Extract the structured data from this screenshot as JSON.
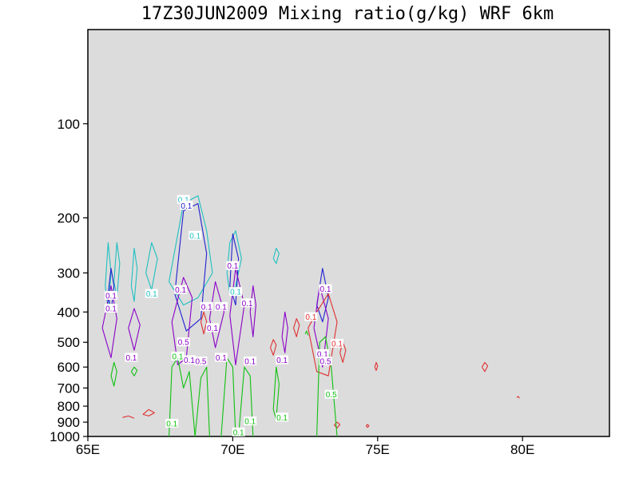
{
  "chart_data": {
    "type": "contour",
    "title": "17Z30JUN2009 Mixing ratio(g/kg)  WRF 6km",
    "xlabel": "",
    "ylabel": "",
    "x_axis": {
      "min": 65,
      "max": 83,
      "ticks": [
        {
          "value": 65,
          "label": "65E"
        },
        {
          "value": 70,
          "label": "70E"
        },
        {
          "value": 75,
          "label": "75E"
        },
        {
          "value": 80,
          "label": "80E"
        }
      ]
    },
    "y_axis": {
      "scale": "log-pressure",
      "min": 1000,
      "max": 50,
      "ticks": [
        {
          "value": 100,
          "label": "100"
        },
        {
          "value": 200,
          "label": "200"
        },
        {
          "value": 300,
          "label": "300"
        },
        {
          "value": 400,
          "label": "400"
        },
        {
          "value": 500,
          "label": "500"
        },
        {
          "value": 600,
          "label": "600"
        },
        {
          "value": 700,
          "label": "700"
        },
        {
          "value": 800,
          "label": "800"
        },
        {
          "value": 900,
          "label": "900"
        },
        {
          "value": 1000,
          "label": "1000"
        }
      ]
    },
    "background_color": "#dcdcdc",
    "series": [
      {
        "color": "#20c0c0",
        "contours": [
          {
            "x": [
              65.6,
              65.7,
              65.8,
              65.7,
              65.6
            ],
            "p": [
              330,
              240,
              300,
              390,
              330
            ]
          },
          {
            "x": [
              65.9,
              66.0,
              66.1,
              66.0,
              65.9
            ],
            "p": [
              320,
              240,
              280,
              360,
              320
            ]
          },
          {
            "x": [
              66.5,
              66.6,
              66.7,
              66.6,
              66.5
            ],
            "p": [
              330,
              250,
              290,
              370,
              330
            ]
          },
          {
            "x": [
              67.0,
              67.2,
              67.4,
              67.2,
              67.0
            ],
            "p": [
              300,
              240,
              270,
              340,
              300
            ]
          },
          {
            "x": [
              67.8,
              68.3,
              68.8,
              69.1,
              69.3,
              68.8,
              68.3,
              67.8
            ],
            "p": [
              320,
              180,
              170,
              220,
              300,
              360,
              380,
              320
            ]
          },
          {
            "x": [
              69.8,
              69.9,
              70.1,
              70.3,
              70.1,
              69.9,
              69.8
            ],
            "p": [
              300,
              240,
              220,
              270,
              330,
              350,
              300
            ]
          },
          {
            "x": [
              71.4,
              71.5,
              71.6,
              71.5,
              71.4
            ],
            "p": [
              270,
              250,
              260,
              280,
              270
            ]
          }
        ]
      },
      {
        "color": "#2020d0",
        "contours": [
          {
            "x": [
              65.7,
              65.8,
              65.9,
              65.8,
              65.7
            ],
            "p": [
              350,
              290,
              330,
              400,
              350
            ]
          },
          {
            "x": [
              68.0,
              68.3,
              68.8,
              69.1,
              68.9,
              68.4,
              68.0
            ],
            "p": [
              350,
              190,
              180,
              260,
              420,
              460,
              350
            ]
          },
          {
            "x": [
              69.9,
              70.0,
              70.2,
              70.1,
              69.9
            ],
            "p": [
              330,
              225,
              270,
              380,
              330
            ]
          },
          {
            "x": [
              72.9,
              73.1,
              73.3,
              73.1,
              72.9
            ],
            "p": [
              380,
              290,
              360,
              430,
              380
            ]
          }
        ]
      },
      {
        "color": "#8a00c8",
        "contours": [
          {
            "x": [
              65.5,
              65.8,
              66.0,
              65.8,
              65.5
            ],
            "p": [
              450,
              330,
              420,
              560,
              450
            ]
          },
          {
            "x": [
              66.4,
              66.6,
              66.8,
              66.6,
              66.4
            ],
            "p": [
              450,
              390,
              440,
              530,
              450
            ]
          },
          {
            "x": [
              67.9,
              68.3,
              68.6,
              68.4,
              68.1,
              67.9
            ],
            "p": [
              430,
              310,
              360,
              560,
              590,
              430
            ]
          },
          {
            "x": [
              69.2,
              69.4,
              69.7,
              69.4,
              69.2
            ],
            "p": [
              420,
              320,
              400,
              520,
              420
            ]
          },
          {
            "x": [
              69.9,
              70.1,
              70.4,
              70.1,
              69.9
            ],
            "p": [
              410,
              290,
              380,
              590,
              410
            ]
          },
          {
            "x": [
              70.6,
              70.7,
              70.8,
              70.7,
              70.6
            ],
            "p": [
              400,
              330,
              380,
              480,
              400
            ]
          },
          {
            "x": [
              71.7,
              71.8,
              71.9,
              71.8,
              71.7
            ],
            "p": [
              480,
              400,
              450,
              540,
              480
            ]
          },
          {
            "x": [
              72.8,
              73.0,
              73.3,
              73.1,
              72.8
            ],
            "p": [
              450,
              330,
              420,
              600,
              450
            ]
          }
        ]
      },
      {
        "color": "#e03030",
        "contours": [
          {
            "x": [
              66.2,
              66.4,
              66.6
            ],
            "p": [
              870,
              860,
              875
            ]
          },
          {
            "x": [
              66.9,
              67.1,
              67.3,
              67.1,
              66.9
            ],
            "p": [
              850,
              820,
              840,
              860,
              850
            ]
          },
          {
            "x": [
              68.9,
              69.0,
              69.1,
              69.0,
              68.9
            ],
            "p": [
              430,
              400,
              430,
              470,
              430
            ]
          },
          {
            "x": [
              71.3,
              71.4,
              71.5,
              71.4,
              71.3
            ],
            "p": [
              520,
              490,
              510,
              550,
              520
            ]
          },
          {
            "x": [
              72.1,
              72.2,
              72.3,
              72.2,
              72.1
            ],
            "p": [
              450,
              420,
              440,
              480,
              450
            ]
          },
          {
            "x": [
              72.6,
              72.9,
              73.3,
              73.6,
              73.3,
              72.9,
              72.6
            ],
            "p": [
              450,
              400,
              350,
              430,
              640,
              620,
              450
            ]
          },
          {
            "x": [
              73.7,
              73.8,
              73.9,
              73.8,
              73.7
            ],
            "p": [
              540,
              500,
              530,
              580,
              540
            ]
          },
          {
            "x": [
              73.5,
              73.6,
              73.7,
              73.6,
              73.5
            ],
            "p": [
              920,
              900,
              915,
              940,
              920
            ]
          },
          {
            "x": [
              74.6,
              74.65,
              74.7,
              74.65,
              74.6
            ],
            "p": [
              925,
              915,
              925,
              935,
              925
            ]
          },
          {
            "x": [
              74.9,
              74.95,
              75.0,
              74.95,
              74.9
            ],
            "p": [
              600,
              580,
              595,
              615,
              600
            ]
          },
          {
            "x": [
              78.6,
              78.7,
              78.8,
              78.7,
              78.6
            ],
            "p": [
              600,
              580,
              595,
              620,
              600
            ]
          },
          {
            "x": [
              79.8,
              79.85,
              79.9
            ],
            "p": [
              750,
              745,
              755
            ]
          }
        ]
      },
      {
        "color": "#10c010",
        "contours": [
          {
            "x": [
              65.8,
              65.9,
              66.0,
              65.9,
              65.8
            ],
            "p": [
              640,
              580,
              620,
              690,
              640
            ]
          },
          {
            "x": [
              66.5,
              66.6,
              66.7,
              66.6,
              66.5
            ],
            "p": [
              620,
              600,
              615,
              640,
              620
            ]
          },
          {
            "x": [
              67.8,
              67.9,
              68.1,
              68.3,
              68.5,
              68.7
            ],
            "p": [
              1000,
              600,
              560,
              700,
              620,
              1000
            ]
          },
          {
            "x": [
              68.7,
              68.9,
              69.1,
              69.2
            ],
            "p": [
              1000,
              650,
              600,
              1000
            ]
          },
          {
            "x": [
              69.6,
              69.8,
              70.0,
              70.1
            ],
            "p": [
              1000,
              560,
              600,
              1000
            ]
          },
          {
            "x": [
              70.2,
              70.4,
              70.6,
              70.7
            ],
            "p": [
              1000,
              600,
              640,
              1000
            ]
          },
          {
            "x": [
              71.4,
              71.5,
              71.6,
              71.5,
              71.4
            ],
            "p": [
              820,
              600,
              680,
              880,
              820
            ]
          },
          {
            "x": [
              72.9,
              73.0,
              73.2,
              73.4,
              73.6
            ],
            "p": [
              1000,
              500,
              480,
              600,
              1000
            ]
          },
          {
            "x": [
              72.5,
              72.55,
              72.6
            ],
            "p": [
              470,
              460,
              475
            ]
          }
        ]
      }
    ],
    "annotations": [
      {
        "text": "0.1",
        "x": 68.3,
        "p": 175,
        "color": "#20c0c0"
      },
      {
        "text": "0.1",
        "x": 68.4,
        "p": 183,
        "color": "#2020d0"
      },
      {
        "text": "0.1",
        "x": 68.7,
        "p": 228,
        "color": "#20c0c0"
      },
      {
        "text": "0.1",
        "x": 65.8,
        "p": 355,
        "color": "#8a00c8"
      },
      {
        "text": "0.1",
        "x": 67.2,
        "p": 350,
        "color": "#20c0c0"
      },
      {
        "text": "0.1",
        "x": 68.2,
        "p": 340,
        "color": "#8a00c8"
      },
      {
        "text": "0.1",
        "x": 70.0,
        "p": 285,
        "color": "#8a00c8"
      },
      {
        "text": "0.1",
        "x": 70.1,
        "p": 345,
        "color": "#20c0c0"
      },
      {
        "text": "0.1",
        "x": 73.2,
        "p": 338,
        "color": "#8a00c8"
      },
      {
        "text": "0.1",
        "x": 65.8,
        "p": 390,
        "color": "#8a00c8"
      },
      {
        "text": "0.1",
        "x": 69.1,
        "p": 385,
        "color": "#8a00c8"
      },
      {
        "text": "0.1",
        "x": 69.6,
        "p": 385,
        "color": "#8a00c8"
      },
      {
        "text": "0.1",
        "x": 70.5,
        "p": 375,
        "color": "#8a00c8"
      },
      {
        "text": "0.1",
        "x": 72.7,
        "p": 415,
        "color": "#e03030"
      },
      {
        "text": "0.1",
        "x": 69.3,
        "p": 450,
        "color": "#8a00c8"
      },
      {
        "text": "0.5",
        "x": 68.3,
        "p": 500,
        "color": "#8a00c8"
      },
      {
        "text": "0.1",
        "x": 73.6,
        "p": 505,
        "color": "#e03030"
      },
      {
        "text": "0.1",
        "x": 73.1,
        "p": 545,
        "color": "#8a00c8"
      },
      {
        "text": "0.1",
        "x": 66.5,
        "p": 560,
        "color": "#8a00c8"
      },
      {
        "text": "0.1",
        "x": 68.1,
        "p": 555,
        "color": "#10c010"
      },
      {
        "text": "0.1",
        "x": 68.5,
        "p": 570,
        "color": "#8a00c8"
      },
      {
        "text": "0.5",
        "x": 68.9,
        "p": 575,
        "color": "#8a00c8"
      },
      {
        "text": "0.1",
        "x": 69.6,
        "p": 560,
        "color": "#8a00c8"
      },
      {
        "text": "0.1",
        "x": 70.6,
        "p": 575,
        "color": "#8a00c8"
      },
      {
        "text": "0.1",
        "x": 71.7,
        "p": 570,
        "color": "#8a00c8"
      },
      {
        "text": "0.5",
        "x": 73.2,
        "p": 575,
        "color": "#8a00c8"
      },
      {
        "text": "0.5",
        "x": 73.4,
        "p": 735,
        "color": "#10c010"
      },
      {
        "text": "0.1",
        "x": 71.7,
        "p": 870,
        "color": "#10c010"
      },
      {
        "text": "0.1",
        "x": 70.6,
        "p": 895,
        "color": "#10c010"
      },
      {
        "text": "0.1",
        "x": 67.9,
        "p": 910,
        "color": "#10c010"
      },
      {
        "text": "0.1",
        "x": 70.2,
        "p": 970,
        "color": "#10c010"
      }
    ]
  }
}
